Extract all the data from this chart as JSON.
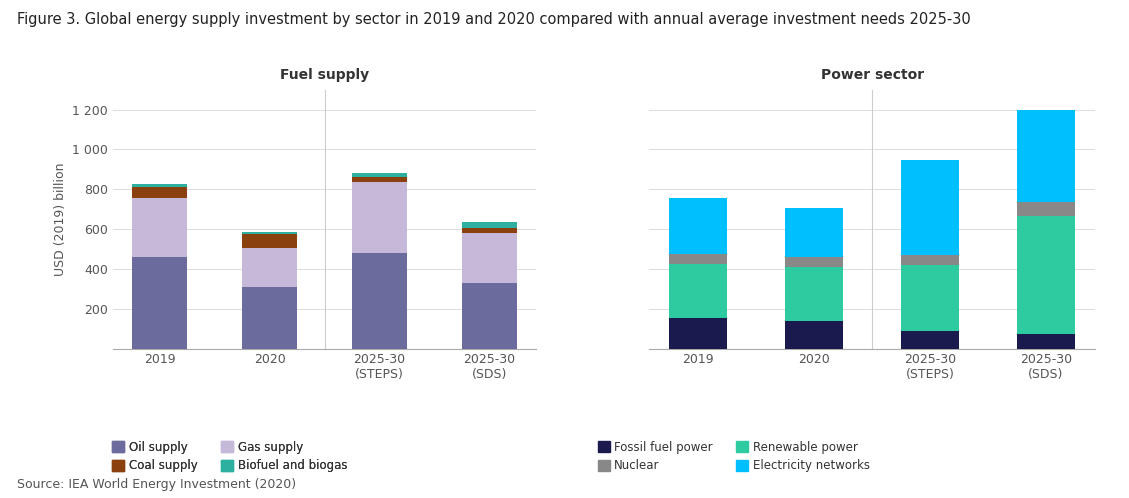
{
  "title": "Figure 3. Global energy supply investment by sector in 2019 and 2020 compared with annual average investment needs 2025-30",
  "source": "Source: IEA World Energy Investment (2020)",
  "ylabel": "USD (2019) billion",
  "ylim": [
    0,
    1300
  ],
  "yticks": [
    0,
    200,
    400,
    600,
    800,
    1000,
    1200
  ],
  "yticklabels": [
    "",
    "200",
    "400",
    "600",
    "800",
    "1 000",
    "1 200"
  ],
  "fuel_categories": [
    "2019",
    "2020",
    "2025-30\n(STEPS)",
    "2025-30\n(SDS)"
  ],
  "fuel_data": {
    "Oil supply": [
      460,
      310,
      480,
      330
    ],
    "Gas supply": [
      295,
      195,
      355,
      250
    ],
    "Coal supply": [
      55,
      70,
      25,
      25
    ],
    "Biofuel and biogas": [
      18,
      12,
      20,
      30
    ]
  },
  "fuel_colors": {
    "Oil supply": "#6b6b9e",
    "Gas supply": "#c5b8d8",
    "Coal supply": "#8b4010",
    "Biofuel and biogas": "#2db0a0"
  },
  "power_categories": [
    "2019",
    "2020",
    "2025-30\n(STEPS)",
    "2025-30\n(SDS)"
  ],
  "power_data": {
    "Fossil fuel power": [
      155,
      140,
      90,
      75
    ],
    "Renewable power": [
      270,
      270,
      330,
      590
    ],
    "Nuclear": [
      50,
      50,
      50,
      70
    ],
    "Electricity networks": [
      280,
      245,
      475,
      465
    ]
  },
  "power_colors": {
    "Fossil fuel power": "#1a1a4e",
    "Renewable power": "#2ecba0",
    "Nuclear": "#888888",
    "Electricity networks": "#00bfff"
  },
  "fuel_title": "Fuel supply",
  "power_title": "Power sector",
  "background_color": "#ffffff",
  "title_fontsize": 10.5,
  "axis_fontsize": 9,
  "legend_fontsize": 8.5,
  "bar_width": 0.5
}
